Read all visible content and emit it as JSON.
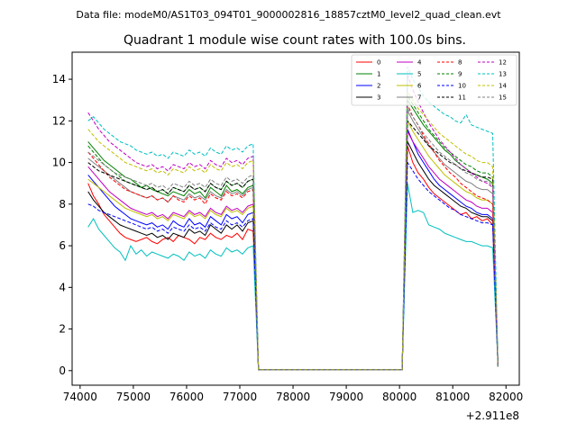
{
  "chart_data": {
    "type": "line",
    "suptitle": "Data file: modeM0/AS1T03_094T01_9000002816_18857cztM0_level2_quad_clean.evt",
    "title": "Quadrant 1 module wise count rates with 100.0s bins.",
    "xlabel": "",
    "ylabel": "",
    "x_offset_label": "+2.911e8",
    "xlim": [
      73850,
      82250
    ],
    "ylim": [
      -0.7,
      15.3
    ],
    "xticks": [
      74000,
      75000,
      76000,
      77000,
      78000,
      79000,
      80000,
      81000,
      82000
    ],
    "xtick_labels": [
      "74000",
      "75000",
      "76000",
      "77000",
      "78000",
      "79000",
      "80000",
      "81000",
      "82000"
    ],
    "yticks": [
      0,
      2,
      4,
      6,
      8,
      10,
      12,
      14
    ],
    "ytick_labels": [
      "0",
      "2",
      "4",
      "6",
      "8",
      "10",
      "12",
      "14"
    ],
    "legend_position": "top-right",
    "segments": [
      {
        "start": 74150,
        "end": 77250,
        "step": 100
      },
      {
        "start": 80150,
        "end": 81750,
        "step": 100
      }
    ],
    "gap_path_x": [
      77250,
      77350,
      77450,
      80050,
      80150
    ],
    "gap_path_y": [
      1.5,
      0.05,
      0.05,
      0.05,
      1.5
    ],
    "end_point": {
      "x": 81850,
      "y": 0.2
    },
    "series": [
      {
        "name": "0",
        "color": "#ff0000",
        "style": "solid",
        "seg1": [
          9.0,
          8.4,
          8.0,
          7.5,
          7.2,
          6.9,
          6.6,
          6.4,
          6.3,
          6.2,
          6.3,
          6.4,
          6.2,
          6.1,
          6.3,
          6.4,
          6.2,
          6.5,
          6.4,
          6.3,
          6.1,
          6.4,
          6.3,
          6.6,
          6.4,
          6.3,
          6.5,
          6.4,
          6.6,
          6.3,
          6.8,
          6.7
        ],
        "seg2": [
          10.8,
          10.0,
          9.5,
          9.2,
          8.8,
          8.5,
          8.3,
          8.1,
          7.9,
          7.7,
          7.5,
          7.6,
          7.3,
          7.4,
          7.2,
          7.3,
          7.0
        ]
      },
      {
        "name": "1",
        "color": "#008000",
        "style": "solid",
        "seg1": [
          11.0,
          10.7,
          10.4,
          10.1,
          9.9,
          9.7,
          9.5,
          9.3,
          9.2,
          9.0,
          8.8,
          8.9,
          8.7,
          8.6,
          8.5,
          8.4,
          8.6,
          8.5,
          8.4,
          8.7,
          8.5,
          8.6,
          8.3,
          8.8,
          8.6,
          8.4,
          8.9,
          8.6,
          8.7,
          8.5,
          8.8,
          8.9
        ],
        "seg2": [
          13.0,
          12.6,
          12.2,
          11.8,
          11.5,
          11.2,
          10.9,
          10.6,
          10.4,
          10.1,
          9.9,
          9.7,
          9.5,
          9.4,
          9.3,
          9.2,
          9.0
        ]
      },
      {
        "name": "2",
        "color": "#0000ff",
        "style": "solid",
        "seg1": [
          9.4,
          9.1,
          8.8,
          8.5,
          8.2,
          7.9,
          7.7,
          7.5,
          7.3,
          7.2,
          7.1,
          7.0,
          7.1,
          6.9,
          7.0,
          6.8,
          7.2,
          7.0,
          6.9,
          7.3,
          7.0,
          7.1,
          6.9,
          7.4,
          7.2,
          7.0,
          7.5,
          7.3,
          7.4,
          7.1,
          7.5,
          7.6
        ],
        "seg2": [
          11.6,
          11.0,
          10.4,
          10.0,
          9.6,
          9.2,
          8.9,
          8.7,
          8.5,
          8.3,
          8.1,
          7.9,
          7.8,
          7.6,
          7.5,
          7.5,
          7.3
        ]
      },
      {
        "name": "3",
        "color": "#000000",
        "style": "solid",
        "seg1": [
          8.6,
          8.2,
          7.9,
          7.6,
          7.4,
          7.2,
          7.0,
          6.9,
          6.8,
          6.7,
          6.6,
          6.5,
          6.6,
          6.4,
          6.5,
          6.3,
          6.6,
          6.5,
          6.4,
          6.8,
          6.6,
          6.7,
          6.5,
          7.0,
          6.8,
          6.6,
          7.0,
          6.8,
          7.0,
          6.7,
          7.1,
          7.2
        ],
        "seg2": [
          11.0,
          10.5,
          10.0,
          9.6,
          9.2,
          8.9,
          8.7,
          8.5,
          8.3,
          8.1,
          7.9,
          7.8,
          7.6,
          7.5,
          7.4,
          7.4,
          7.2
        ]
      },
      {
        "name": "4",
        "color": "#c000c0",
        "style": "solid",
        "seg1": [
          9.8,
          9.5,
          9.2,
          8.9,
          8.6,
          8.4,
          8.2,
          8.0,
          7.8,
          7.7,
          7.6,
          7.5,
          7.6,
          7.4,
          7.5,
          7.3,
          7.6,
          7.5,
          7.4,
          7.7,
          7.5,
          7.6,
          7.4,
          7.8,
          7.6,
          7.5,
          7.9,
          7.7,
          7.8,
          7.6,
          7.9,
          8.0
        ],
        "seg2": [
          11.5,
          11.0,
          10.6,
          10.2,
          9.8,
          9.5,
          9.2,
          9.0,
          8.8,
          8.6,
          8.4,
          8.2,
          8.1,
          7.9,
          7.8,
          7.8,
          7.6
        ]
      },
      {
        "name": "5",
        "color": "#00bfbf",
        "style": "solid",
        "seg1": [
          6.9,
          7.3,
          6.8,
          6.5,
          6.2,
          5.9,
          5.7,
          5.3,
          6.0,
          5.6,
          5.8,
          5.5,
          5.7,
          5.6,
          5.5,
          5.4,
          5.6,
          5.5,
          5.3,
          5.7,
          5.5,
          5.6,
          5.4,
          5.8,
          5.6,
          5.5,
          5.9,
          5.7,
          5.8,
          5.6,
          5.9,
          6.0
        ],
        "seg2": [
          9.0,
          7.6,
          7.7,
          7.6,
          7.0,
          6.9,
          6.8,
          6.6,
          6.5,
          6.4,
          6.3,
          6.2,
          6.2,
          6.1,
          6.0,
          6.0,
          5.9
        ]
      },
      {
        "name": "6",
        "color": "#bfbf00",
        "style": "solid",
        "seg1": [
          9.2,
          9.0,
          8.8,
          8.6,
          8.4,
          8.2,
          8.0,
          7.8,
          7.7,
          7.6,
          7.5,
          7.4,
          7.5,
          7.3,
          7.4,
          7.2,
          7.5,
          7.4,
          7.3,
          7.6,
          7.4,
          7.5,
          7.3,
          7.7,
          7.5,
          7.4,
          7.8,
          7.6,
          7.7,
          7.5,
          7.8,
          7.9
        ],
        "seg2": [
          12.0,
          11.5,
          11.1,
          10.7,
          10.3,
          10.0,
          9.7,
          9.4,
          9.2,
          9.0,
          8.8,
          8.6,
          8.5,
          8.3,
          8.2,
          8.2,
          8.0
        ]
      },
      {
        "name": "7",
        "color": "#808080",
        "style": "solid",
        "seg1": [
          10.2,
          10.0,
          9.8,
          9.6,
          9.4,
          9.2,
          9.0,
          8.8,
          8.6,
          8.5,
          8.4,
          8.3,
          8.4,
          8.2,
          8.3,
          8.1,
          8.4,
          8.3,
          8.2,
          8.5,
          8.3,
          8.4,
          8.2,
          8.6,
          8.4,
          8.3,
          8.7,
          8.5,
          8.6,
          8.4,
          8.7,
          8.8
        ],
        "seg2": [
          12.5,
          12.0,
          11.6,
          11.2,
          10.8,
          10.5,
          10.2,
          9.9,
          9.7,
          9.5,
          9.3,
          9.1,
          9.0,
          8.8,
          8.7,
          8.7,
          8.5
        ]
      },
      {
        "name": "8",
        "color": "#ff0000",
        "style": "dashed",
        "seg1": [
          10.5,
          10.2,
          9.9,
          9.6,
          9.3,
          9.1,
          8.9,
          8.7,
          8.6,
          8.5,
          8.4,
          8.3,
          8.4,
          8.2,
          8.3,
          8.1,
          8.4,
          8.2,
          8.1,
          8.4,
          8.2,
          8.3,
          8.0,
          8.5,
          8.3,
          8.2,
          8.6,
          8.4,
          8.5,
          8.3,
          8.6,
          8.7
        ],
        "seg2": [
          12.8,
          12.2,
          11.8,
          11.3,
          10.9,
          10.5,
          10.1,
          9.8,
          9.5,
          9.3,
          9.0,
          8.8,
          8.6,
          8.4,
          8.3,
          8.2,
          8.0
        ]
      },
      {
        "name": "9",
        "color": "#008000",
        "style": "dashed",
        "seg1": [
          10.8,
          10.5,
          10.2,
          9.9,
          9.7,
          9.5,
          9.3,
          9.1,
          9.0,
          8.9,
          8.8,
          8.7,
          8.8,
          8.6,
          8.7,
          8.5,
          8.8,
          8.7,
          8.6,
          8.9,
          8.7,
          8.8,
          8.6,
          9.0,
          8.8,
          8.7,
          9.1,
          8.9,
          9.0,
          8.8,
          9.1,
          9.2
        ],
        "seg2": [
          13.2,
          12.8,
          12.4,
          12.0,
          11.6,
          11.3,
          11.0,
          10.7,
          10.5,
          10.3,
          10.1,
          9.9,
          9.8,
          9.6,
          9.5,
          9.5,
          9.3
        ]
      },
      {
        "name": "10",
        "color": "#0000ff",
        "style": "dashed",
        "seg1": [
          8.0,
          7.9,
          7.7,
          7.6,
          7.5,
          7.4,
          7.3,
          7.2,
          7.1,
          7.0,
          6.9,
          6.8,
          6.9,
          6.7,
          6.8,
          6.6,
          6.9,
          6.8,
          6.7,
          7.0,
          6.8,
          6.9,
          6.7,
          7.1,
          6.9,
          6.8,
          7.2,
          7.0,
          7.1,
          6.9,
          7.2,
          7.3
        ],
        "seg2": [
          10.0,
          9.6,
          9.2,
          8.9,
          8.6,
          8.4,
          8.2,
          8.0,
          7.8,
          7.7,
          7.5,
          7.4,
          7.3,
          7.2,
          7.1,
          7.1,
          7.0
        ]
      },
      {
        "name": "11",
        "color": "#000000",
        "style": "dashed",
        "seg1": [
          10.0,
          9.8,
          9.6,
          9.5,
          9.4,
          9.3,
          9.2,
          9.1,
          9.0,
          8.9,
          8.8,
          8.7,
          8.8,
          8.6,
          8.7,
          8.5,
          8.8,
          8.7,
          8.6,
          8.9,
          8.7,
          8.8,
          8.6,
          9.0,
          8.8,
          8.7,
          9.1,
          8.9,
          9.0,
          8.8,
          9.1,
          9.2
        ],
        "seg2": [
          12.0,
          11.7,
          11.4,
          11.1,
          10.8,
          10.6,
          10.4,
          10.2,
          10.0,
          9.9,
          9.7,
          9.6,
          9.5,
          9.4,
          9.3,
          9.3,
          9.2
        ]
      },
      {
        "name": "12",
        "color": "#c000c0",
        "style": "dashed",
        "seg1": [
          12.4,
          12.0,
          11.6,
          11.3,
          11.0,
          10.8,
          10.6,
          10.4,
          10.2,
          10.0,
          9.9,
          9.8,
          9.9,
          9.7,
          9.8,
          9.6,
          9.9,
          9.8,
          9.7,
          10.0,
          9.8,
          9.9,
          9.7,
          10.1,
          9.9,
          9.8,
          10.2,
          10.0,
          10.1,
          9.9,
          10.2,
          10.3
        ],
        "seg2": [
          14.2,
          13.5,
          12.9,
          12.4,
          11.9,
          11.5,
          11.1,
          10.8,
          10.5,
          10.2,
          9.9,
          9.7,
          9.5,
          9.3,
          9.1,
          9.0,
          8.8
        ]
      },
      {
        "name": "13",
        "color": "#00bfbf",
        "style": "dashed",
        "seg1": [
          12.0,
          12.2,
          11.9,
          11.6,
          11.4,
          11.2,
          11.0,
          10.9,
          10.8,
          10.6,
          10.5,
          10.4,
          10.5,
          10.3,
          10.4,
          10.2,
          10.5,
          10.4,
          10.3,
          10.6,
          10.4,
          10.5,
          10.3,
          10.7,
          10.5,
          10.4,
          10.8,
          10.6,
          10.7,
          10.5,
          10.8,
          10.9
        ],
        "seg2": [
          14.6,
          14.0,
          13.6,
          13.2,
          12.9,
          12.7,
          12.5,
          12.3,
          12.2,
          12.0,
          11.9,
          12.3,
          11.8,
          11.7,
          11.6,
          11.5,
          11.4
        ]
      },
      {
        "name": "14",
        "color": "#bfbf00",
        "style": "dashed",
        "seg1": [
          11.6,
          11.3,
          11.0,
          10.8,
          10.6,
          10.4,
          10.2,
          10.0,
          9.9,
          9.8,
          9.7,
          9.6,
          9.7,
          9.5,
          9.6,
          9.4,
          9.7,
          9.6,
          9.5,
          9.8,
          9.6,
          9.7,
          9.5,
          9.9,
          9.7,
          9.6,
          10.0,
          9.8,
          9.9,
          9.7,
          10.0,
          10.1
        ],
        "seg2": [
          13.4,
          13.0,
          12.6,
          12.3,
          12.0,
          11.7,
          11.4,
          11.2,
          11.0,
          10.8,
          10.6,
          10.4,
          10.3,
          10.1,
          10.0,
          10.0,
          9.8
        ]
      },
      {
        "name": "15",
        "color": "#808080",
        "style": "dashed",
        "seg1": [
          10.5,
          10.3,
          10.1,
          9.9,
          9.7,
          9.5,
          9.4,
          9.3,
          9.2,
          9.1,
          9.0,
          8.9,
          9.0,
          8.8,
          8.9,
          8.7,
          9.0,
          8.9,
          8.8,
          9.1,
          8.9,
          9.0,
          8.8,
          9.2,
          9.0,
          8.9,
          9.3,
          9.1,
          9.2,
          9.0,
          9.3,
          9.4
        ],
        "seg2": [
          12.6,
          12.2,
          11.8,
          11.4,
          11.1,
          10.8,
          10.5,
          10.3,
          10.1,
          9.9,
          9.7,
          9.5,
          9.4,
          9.2,
          9.1,
          9.1,
          8.9
        ]
      }
    ]
  }
}
